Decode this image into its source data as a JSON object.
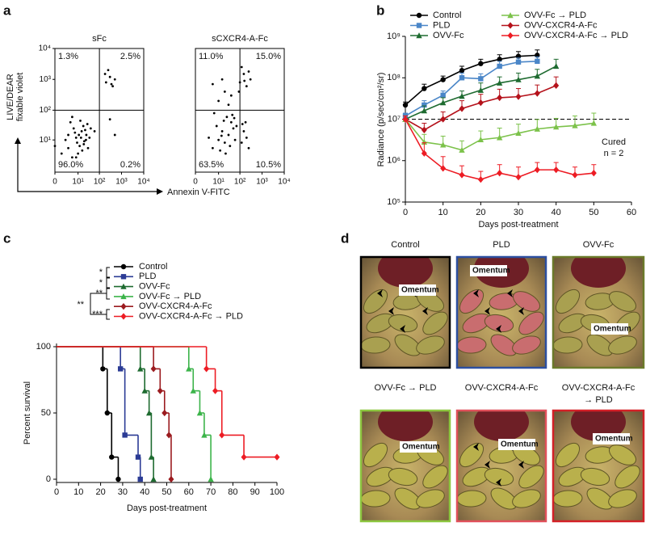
{
  "panel_labels": [
    "a",
    "b",
    "c",
    "d"
  ],
  "chart_data": [
    {
      "type": "scatter",
      "title": "sFc",
      "ylabel": [
        "LIVE/DEAR",
        "fixable violet"
      ],
      "xlabel": "Annexin V-FITC",
      "xscale": "log1p",
      "yscale": "log1p",
      "xlim": [
        0,
        10000
      ],
      "ylim": [
        0,
        10000
      ],
      "xticks": [
        0,
        {
          "value": 10,
          "label": "10¹"
        },
        {
          "value": 100,
          "label": "10²"
        },
        {
          "value": 1000,
          "label": "10³"
        },
        {
          "value": 10000,
          "label": "10⁴"
        }
      ],
      "yticks": [
        {
          "value": 10,
          "label": "10¹"
        },
        {
          "value": 100,
          "label": "10²"
        },
        {
          "value": 1000,
          "label": "10³"
        },
        {
          "value": 10000,
          "label": "10⁴"
        }
      ],
      "gates": [
        100,
        100
      ],
      "quadrant_labels": [
        "1.3%",
        "2.5%",
        "96.0%",
        "0.2%"
      ],
      "color": "#000000",
      "x": [
        3,
        5,
        8,
        12,
        15,
        20,
        6,
        2,
        10,
        25,
        30,
        18,
        4,
        9,
        14,
        7,
        22,
        1,
        11,
        16,
        35,
        5,
        13,
        40,
        28,
        0,
        3,
        19,
        8,
        24,
        200,
        300,
        400,
        250,
        500,
        180,
        350,
        60,
        300,
        500
      ],
      "values": [
        5,
        2,
        12,
        6,
        20,
        9,
        25,
        10,
        3,
        15,
        5,
        30,
        40,
        8,
        12,
        18,
        22,
        3,
        15,
        4,
        12,
        60,
        45,
        25,
        35,
        6,
        15,
        7,
        2,
        10,
        800,
        1200,
        600,
        2000,
        1000,
        1500,
        700,
        20,
        50,
        15
      ]
    },
    {
      "type": "scatter",
      "title": "sCXCR4-A-Fc",
      "xscale": "log1p",
      "yscale": "log1p",
      "xlim": [
        0,
        10000
      ],
      "ylim": [
        0,
        10000
      ],
      "xticks": [
        0,
        {
          "value": 10,
          "label": "10¹"
        },
        {
          "value": 100,
          "label": "10²"
        },
        {
          "value": 1000,
          "label": "10³"
        },
        {
          "value": 10000,
          "label": "10⁴"
        }
      ],
      "gates": [
        100,
        100
      ],
      "quadrant_labels": [
        "11.0%",
        "15.0%",
        "63.5%",
        "10.5%"
      ],
      "color": "#000000",
      "x": [
        5,
        10,
        15,
        20,
        8,
        30,
        40,
        25,
        12,
        50,
        60,
        3,
        18,
        35,
        45,
        70,
        6,
        22,
        55,
        14,
        120,
        150,
        200,
        130,
        250,
        180,
        100,
        150,
        200,
        120,
        300,
        90,
        250,
        160,
        10,
        20,
        30,
        5,
        40,
        15
      ],
      "values": [
        5,
        10,
        20,
        8,
        30,
        15,
        40,
        60,
        4,
        25,
        10,
        12,
        45,
        6,
        70,
        30,
        80,
        3,
        55,
        14,
        8,
        20,
        12,
        35,
        5,
        40,
        800,
        1500,
        600,
        2500,
        1000,
        400,
        1800,
        900,
        200,
        400,
        150,
        700,
        300,
        1000
      ]
    },
    {
      "type": "line",
      "ylabel": "Radiance (p/sec/cm²/sr)",
      "xlabel": "Days post-treatment",
      "ylog": true,
      "xlim": [
        0,
        60
      ],
      "xticks": [
        0,
        10,
        20,
        30,
        40,
        50,
        60
      ],
      "ylim": [
        100000,
        1000000000
      ],
      "yticks": [
        {
          "value": 100000,
          "label": "10⁵"
        },
        {
          "value": 1000000,
          "label": "10⁶"
        },
        {
          "value": 10000000,
          "label": "10⁷"
        },
        {
          "value": 100000000,
          "label": "10⁸"
        },
        {
          "value": 1000000000,
          "label": "10⁹"
        }
      ],
      "reference_line": 10000000,
      "annotations": [
        "Cured",
        "n = 2"
      ],
      "x": [
        0,
        5,
        10,
        15,
        20,
        25,
        30,
        35,
        40,
        45,
        50
      ],
      "series": [
        {
          "name": "Control",
          "color": "#000000",
          "marker": "circle",
          "values": [
            22000000,
            55000000,
            90000000,
            150000000,
            220000000,
            280000000,
            330000000,
            350000000,
            null,
            null,
            null
          ],
          "errors": [
            4000000,
            15000000,
            20000000,
            40000000,
            60000000,
            80000000,
            100000000,
            120000000,
            null,
            null,
            null
          ]
        },
        {
          "name": "PLD",
          "color": "#4a86c8",
          "marker": "square",
          "values": [
            12000000,
            22000000,
            38000000,
            100000000,
            95000000,
            190000000,
            240000000,
            250000000,
            null,
            null,
            null
          ],
          "errors": [
            2000000,
            6000000,
            10000000,
            30000000,
            30000000,
            60000000,
            60000000,
            70000000,
            null,
            null,
            null
          ]
        },
        {
          "name": "OVV-Fc",
          "color": "#1e6b30",
          "marker": "triangle",
          "values": [
            10000000,
            16000000,
            25000000,
            36000000,
            50000000,
            75000000,
            90000000,
            110000000,
            190000000,
            null,
            null
          ],
          "errors": [
            2000000,
            5000000,
            8000000,
            12000000,
            25000000,
            30000000,
            40000000,
            50000000,
            90000000,
            null,
            null
          ]
        },
        {
          "name": "OVV-Fc → PLD",
          "color": "#7cc24a",
          "marker": "triangle",
          "values": [
            10000000,
            2800000,
            2400000,
            1800000,
            3200000,
            3600000,
            4600000,
            5800000,
            6500000,
            7000000,
            8000000
          ],
          "errors": [
            2000000,
            1500000,
            1500000,
            1200000,
            2000000,
            2500000,
            3000000,
            4000000,
            4000000,
            5000000,
            6000000
          ]
        },
        {
          "name": "OVV-CXCR4-A-Fc",
          "color": "#b5121b",
          "marker": "diamond",
          "values": [
            10000000,
            5500000,
            10000000,
            18000000,
            25000000,
            33000000,
            35000000,
            42000000,
            65000000,
            null,
            null
          ],
          "errors": [
            2000000,
            2500000,
            5000000,
            10000000,
            15000000,
            20000000,
            20000000,
            25000000,
            40000000,
            null,
            null
          ]
        },
        {
          "name": "OVV-CXCR4-A-Fc → PLD",
          "color": "#ed1c24",
          "marker": "diamond",
          "values": [
            10000000,
            1500000,
            650000,
            450000,
            350000,
            500000,
            400000,
            600000,
            600000,
            450000,
            500000
          ],
          "errors": [
            2000000,
            1200000,
            600000,
            300000,
            200000,
            300000,
            300000,
            300000,
            300000,
            250000,
            300000
          ]
        }
      ]
    },
    {
      "type": "step",
      "ylabel": "Percent survival",
      "xlabel": "Days post-treatment",
      "xlim": [
        0,
        100
      ],
      "xticks": [
        0,
        10,
        20,
        30,
        40,
        50,
        60,
        70,
        80,
        90,
        100
      ],
      "ylim": [
        0,
        100
      ],
      "yticks": [
        0,
        50,
        100
      ],
      "significance": [
        "*",
        "*",
        "**",
        "**",
        "***"
      ],
      "series": [
        {
          "name": "Control",
          "color": "#000000",
          "marker": "circle",
          "x": [
            0,
            21,
            23,
            25,
            28
          ],
          "values": [
            100,
            83.3,
            50,
            16.7,
            0
          ]
        },
        {
          "name": "PLD",
          "color": "#2b3b95",
          "marker": "square",
          "x": [
            0,
            29,
            31,
            37,
            38
          ],
          "values": [
            100,
            83.3,
            33.3,
            16.7,
            0
          ]
        },
        {
          "name": "OVV-Fc",
          "color": "#1e6b30",
          "marker": "triangle",
          "x": [
            0,
            38,
            40,
            42,
            43,
            44
          ],
          "values": [
            100,
            83.3,
            66.7,
            50,
            16.7,
            0
          ]
        },
        {
          "name": "OVV-Fc → PLD",
          "color": "#3cb44a",
          "marker": "triangle",
          "x": [
            0,
            60,
            62,
            65,
            67,
            70
          ],
          "values": [
            100,
            83.3,
            66.7,
            50,
            33.3,
            0
          ]
        },
        {
          "name": "OVV-CXCR4-A-Fc",
          "color": "#9b1b1f",
          "marker": "diamond",
          "x": [
            0,
            44,
            47,
            49,
            51,
            52
          ],
          "values": [
            100,
            83.3,
            66.7,
            50,
            33.3,
            0
          ]
        },
        {
          "name": "OVV-CXCR4-A-Fc → PLD",
          "color": "#ed1c24",
          "marker": "diamond",
          "x": [
            0,
            68,
            72,
            75,
            85,
            100
          ],
          "values": [
            100,
            83.3,
            66.7,
            33.3,
            16.7,
            16.7
          ]
        }
      ]
    }
  ],
  "photos": {
    "panels": [
      {
        "title": [
          "Control"
        ],
        "label": "Omentum",
        "border": "#000000"
      },
      {
        "title": [
          "PLD"
        ],
        "label": "Omentum",
        "border": "#2c4fa0"
      },
      {
        "title": [
          "OVV-Fc"
        ],
        "label": "Omentum",
        "border": "#6b7a2a"
      },
      {
        "title": [
          "OVV-Fc → PLD"
        ],
        "label": "Omentum",
        "border": "#8cc63f"
      },
      {
        "title": [
          "OVV-CXCR4-A-Fc"
        ],
        "label": "Omentum",
        "border": "#e0505a"
      },
      {
        "title": [
          "OVV-CXCR4-A-Fc",
          "→ PLD"
        ],
        "label": "Omentum",
        "border": "#d32027"
      }
    ]
  }
}
